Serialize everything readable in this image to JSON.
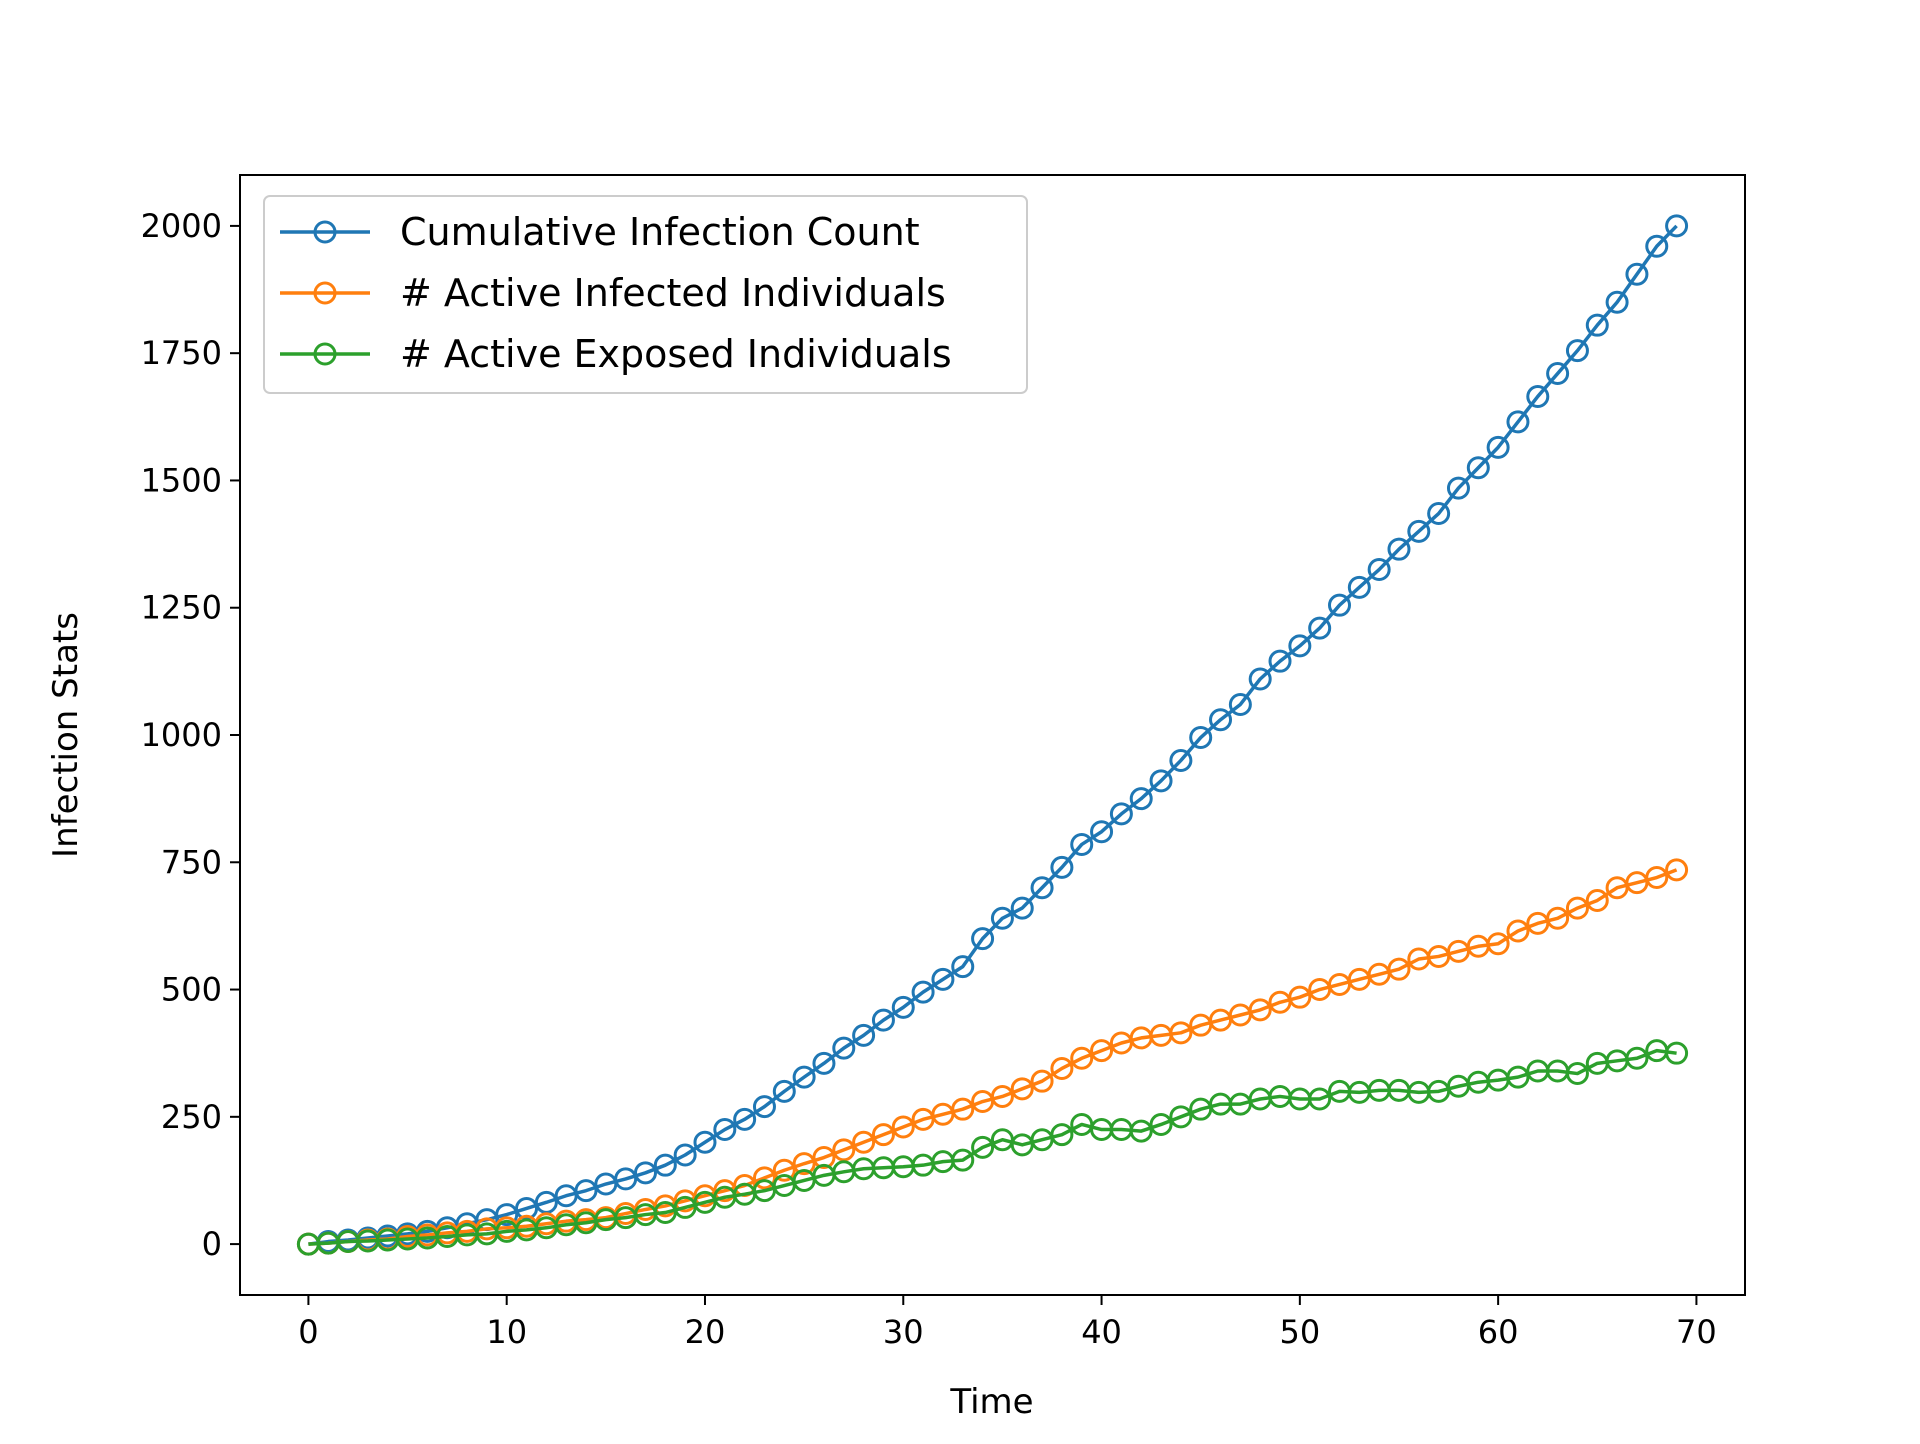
{
  "chart_data": {
    "type": "line",
    "title": "",
    "xlabel": "Time",
    "ylabel": "Infection Stats",
    "xlim": [
      -3.45,
      72.45
    ],
    "ylim": [
      -100,
      2100
    ],
    "xticks": [
      0,
      10,
      20,
      30,
      40,
      50,
      60,
      70
    ],
    "yticks": [
      0,
      250,
      500,
      750,
      1000,
      1250,
      1500,
      1750,
      2000
    ],
    "xtick_labels": [
      "0",
      "10",
      "20",
      "30",
      "40",
      "50",
      "60",
      "70"
    ],
    "ytick_labels": [
      "0",
      "250",
      "500",
      "750",
      "1000",
      "1250",
      "1500",
      "1750",
      "2000"
    ],
    "grid": false,
    "legend_position": "top-left",
    "marker": "hollow-circle",
    "x": [
      0,
      1,
      2,
      3,
      4,
      5,
      6,
      7,
      8,
      9,
      10,
      11,
      12,
      13,
      14,
      15,
      16,
      17,
      18,
      19,
      20,
      21,
      22,
      23,
      24,
      25,
      26,
      27,
      28,
      29,
      30,
      31,
      32,
      33,
      34,
      35,
      36,
      37,
      38,
      39,
      40,
      41,
      42,
      43,
      44,
      45,
      46,
      47,
      48,
      49,
      50,
      51,
      52,
      53,
      54,
      55,
      56,
      57,
      58,
      59,
      60,
      61,
      62,
      63,
      64,
      65,
      66,
      67,
      68,
      69
    ],
    "series": [
      {
        "name": "Cumulative Infection Count",
        "color": "#1f77b4",
        "values": [
          0,
          5,
          8,
          12,
          16,
          20,
          25,
          32,
          40,
          48,
          58,
          70,
          82,
          95,
          105,
          118,
          128,
          140,
          155,
          175,
          200,
          225,
          245,
          270,
          300,
          328,
          355,
          385,
          410,
          440,
          465,
          495,
          520,
          545,
          600,
          640,
          660,
          700,
          740,
          785,
          810,
          845,
          875,
          910,
          950,
          995,
          1030,
          1060,
          1110,
          1145,
          1175,
          1210,
          1255,
          1290,
          1325,
          1365,
          1400,
          1435,
          1485,
          1525,
          1565,
          1615,
          1665,
          1710,
          1755,
          1805,
          1850,
          1905,
          1960,
          2000
        ]
      },
      {
        "name": "# Active Infected Individuals",
        "color": "#ff7f0e",
        "values": [
          0,
          2,
          5,
          8,
          10,
          15,
          18,
          22,
          25,
          30,
          32,
          35,
          40,
          45,
          48,
          52,
          60,
          68,
          75,
          85,
          95,
          105,
          115,
          130,
          145,
          158,
          170,
          185,
          200,
          215,
          230,
          245,
          255,
          265,
          280,
          290,
          305,
          320,
          345,
          365,
          380,
          395,
          405,
          410,
          415,
          430,
          440,
          450,
          460,
          475,
          485,
          500,
          510,
          520,
          530,
          540,
          560,
          565,
          575,
          585,
          590,
          615,
          630,
          640,
          660,
          675,
          700,
          710,
          720,
          735
        ]
      },
      {
        "name": "# Active Exposed Individuals",
        "color": "#2ca02c",
        "values": [
          0,
          2,
          5,
          6,
          8,
          10,
          12,
          15,
          18,
          20,
          25,
          28,
          32,
          38,
          42,
          48,
          52,
          58,
          62,
          72,
          82,
          92,
          98,
          105,
          115,
          125,
          135,
          142,
          148,
          150,
          152,
          155,
          162,
          165,
          190,
          205,
          195,
          205,
          215,
          235,
          225,
          225,
          222,
          235,
          250,
          265,
          275,
          275,
          285,
          290,
          285,
          285,
          300,
          298,
          302,
          302,
          298,
          300,
          310,
          318,
          322,
          328,
          340,
          340,
          335,
          355,
          360,
          365,
          380,
          375
        ]
      }
    ]
  }
}
